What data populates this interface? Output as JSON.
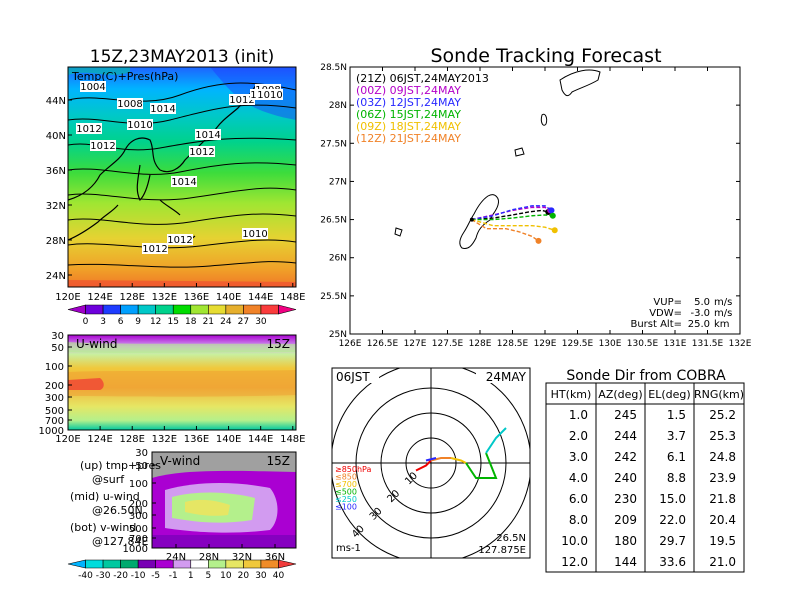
{
  "left_top": {
    "title": "15Z,23MAY2013 (init)",
    "label": "Temp(C)+Pres(hPa)",
    "lat_labels": [
      "44N",
      "40N",
      "36N",
      "32N",
      "28N",
      "24N"
    ],
    "lon_labels": [
      "120E",
      "124E",
      "128E",
      "132E",
      "136E",
      "140E",
      "144E",
      "148E"
    ],
    "pressure_labels": [
      {
        "text": "1004"
      },
      {
        "text": "1008"
      },
      {
        "text": "1014"
      },
      {
        "text": "1012"
      },
      {
        "text": "1010"
      },
      {
        "text": "1012"
      },
      {
        "text": "1008"
      },
      {
        "text": "1012"
      },
      {
        "text": "1010"
      },
      {
        "text": "1014"
      },
      {
        "text": "1012"
      },
      {
        "text": "1014"
      },
      {
        "text": "1012"
      },
      {
        "text": "1012"
      },
      {
        "text": "1010"
      },
      {
        "text": "1010"
      }
    ],
    "colorbar_ticks": [
      "0",
      "3",
      "6",
      "9",
      "12",
      "15",
      "18",
      "21",
      "24",
      "27",
      "30"
    ],
    "colorbar_colors": [
      "#a000c8",
      "#6e00dc",
      "#1e3cff",
      "#00a0ff",
      "#00c8c8",
      "#00d28c",
      "#00dc00",
      "#a0e632",
      "#e6dc32",
      "#e6af2d",
      "#f08228",
      "#fa3c3c",
      "#f00082"
    ]
  },
  "left_mid": {
    "title": "U-wind",
    "time": "15Z",
    "p_labels": [
      "30",
      "50",
      "100",
      "200",
      "300",
      "500",
      "700",
      "1000"
    ],
    "lon_labels": [
      "120E",
      "124E",
      "128E",
      "132E",
      "136E",
      "140E",
      "144E",
      "148E"
    ]
  },
  "left_bot": {
    "title": "V-wind",
    "time": "15Z",
    "p_labels": [
      "30",
      "50",
      "100",
      "200",
      "300",
      "500",
      "700",
      "1000"
    ],
    "lat_labels": [
      "24N",
      "28N",
      "32N",
      "36N"
    ],
    "colorbar_ticks": [
      "-40",
      "-30",
      "-20",
      "-10",
      "-5",
      "-1",
      "1",
      "5",
      "10",
      "20",
      "30",
      "40"
    ],
    "colorbar_colors": [
      "#00b4ff",
      "#00dcdc",
      "#00c8a0",
      "#00aa6e",
      "#7800b4",
      "#aa00d2",
      "#d29bf0",
      "#ffffff",
      "#b4f08c",
      "#e6e664",
      "#f0c83c",
      "#f08c28",
      "#f03c3c"
    ]
  },
  "legend_notes": [
    {
      "a": "(up) tmp+pres",
      "b": "@surf"
    },
    {
      "a": "(mid) u-wind",
      "b": "@26.50N"
    },
    {
      "a": "(bot) v-wind",
      "b": "@127.84E"
    }
  ],
  "tracking": {
    "title": "Sonde Tracking Forecast",
    "lat_ticks": [
      "28.5N",
      "28N",
      "27.5N",
      "27N",
      "26.5N",
      "26N",
      "25.5N",
      "25N"
    ],
    "lon_ticks": [
      "126E",
      "126.5E",
      "127E",
      "127.5E",
      "128E",
      "128.5E",
      "129E",
      "129.5E",
      "130E",
      "130.5E",
      "131E",
      "131.5E",
      "132E"
    ],
    "launches": [
      {
        "label": "(21Z)  06JST,24MAY2013",
        "color": "#000000"
      },
      {
        "label": "(00Z)  09JST,24MAY",
        "color": "#b400c8"
      },
      {
        "label": "(03Z)  12JST,24MAY",
        "color": "#2828ff"
      },
      {
        "label": "(06Z)  15JST,24MAY",
        "color": "#00b400"
      },
      {
        "label": "(09Z)  18JST,24MAY",
        "color": "#f0c000"
      },
      {
        "label": "(12Z)  21JST,24MAY",
        "color": "#f08228"
      }
    ],
    "params": [
      {
        "label": "VUP=",
        "value": "5.0",
        "unit": "m/s"
      },
      {
        "label": "VDW=",
        "value": "-3.0",
        "unit": "m/s"
      },
      {
        "label": "Burst Alt=",
        "value": "25.0",
        "unit": "km"
      }
    ]
  },
  "hodograph": {
    "time_label": "06JST",
    "date_label": "24MAY",
    "ring_labels": [
      "10",
      "20",
      "30",
      "40"
    ],
    "unit": "ms-1",
    "lat": "26.5N",
    "lon": "127.875E",
    "legend": [
      {
        "text": "≥850hPa",
        "color": "#f00000"
      },
      {
        "text": "≤850",
        "color": "#f08228"
      },
      {
        "text": "≤700",
        "color": "#f0c000"
      },
      {
        "text": "≤500",
        "color": "#00b400"
      },
      {
        "text": "≤250",
        "color": "#00c8c8"
      },
      {
        "text": "≤100",
        "color": "#2828ff"
      }
    ]
  },
  "sonde_table": {
    "title": "Sonde Dir from COBRA",
    "headers": [
      "HT(km)",
      "AZ(deg)",
      "EL(deg)",
      "RNG(km)"
    ],
    "rows": [
      [
        "1.0",
        "245",
        "1.5",
        "25.2"
      ],
      [
        "2.0",
        "244",
        "3.7",
        "25.3"
      ],
      [
        "3.0",
        "242",
        "6.1",
        "24.8"
      ],
      [
        "4.0",
        "240",
        "8.8",
        "23.9"
      ],
      [
        "6.0",
        "230",
        "15.0",
        "21.8"
      ],
      [
        "8.0",
        "209",
        "22.0",
        "20.4"
      ],
      [
        "10.0",
        "180",
        "29.7",
        "19.5"
      ],
      [
        "12.0",
        "144",
        "33.6",
        "21.0"
      ]
    ]
  },
  "chart_data": [
    {
      "type": "line",
      "title": "Sonde Tracking Forecast",
      "xlim": [
        126,
        132
      ],
      "ylim": [
        25,
        28.5
      ],
      "launch_point": [
        127.875,
        26.5
      ],
      "series": [
        {
          "name": "(21Z)  06JST,24MAY2013",
          "x": [
            127.87,
            128.2,
            128.5,
            128.75,
            128.95,
            129.05
          ],
          "y": [
            26.5,
            26.52,
            26.56,
            26.6,
            26.62,
            26.6
          ]
        },
        {
          "name": "(00Z)  09JST,24MAY",
          "x": [
            127.87,
            128.2,
            128.5,
            128.8,
            129.0,
            129.08
          ],
          "y": [
            26.5,
            26.56,
            26.62,
            26.66,
            26.66,
            26.62
          ]
        },
        {
          "name": "(03Z)  12JST,24MAY",
          "x": [
            127.87,
            128.2,
            128.5,
            128.8,
            129.0,
            129.1
          ],
          "y": [
            26.5,
            26.55,
            26.63,
            26.68,
            26.68,
            26.62
          ]
        },
        {
          "name": "(06Z)  15JST,24MAY",
          "x": [
            127.87,
            128.2,
            128.5,
            128.8,
            129.0,
            129.12
          ],
          "y": [
            26.5,
            26.5,
            26.52,
            26.55,
            26.56,
            26.55
          ]
        },
        {
          "name": "(09Z)  18JST,24MAY",
          "x": [
            127.87,
            128.2,
            128.5,
            128.8,
            129.0,
            129.15
          ],
          "y": [
            26.5,
            26.42,
            26.42,
            26.42,
            26.4,
            26.36
          ]
        },
        {
          "name": "(12Z)  21JST,24MAY",
          "x": [
            127.87,
            128.1,
            128.4,
            128.6,
            128.8,
            128.9
          ],
          "y": [
            26.5,
            26.38,
            26.38,
            26.34,
            26.28,
            26.22
          ]
        }
      ]
    },
    {
      "type": "line",
      "title": "hodograph",
      "xlim": [
        -40,
        40
      ],
      "ylim": [
        -40,
        40
      ],
      "series": [
        {
          "name": "≥850hPa",
          "u": [
            -6,
            -2,
            0
          ],
          "v": [
            -3,
            -1,
            1
          ]
        },
        {
          "name": "≤850",
          "u": [
            0,
            4,
            8
          ],
          "v": [
            1,
            2,
            2
          ]
        },
        {
          "name": "≤700",
          "u": [
            8,
            12,
            14
          ],
          "v": [
            2,
            1,
            0
          ]
        },
        {
          "name": "≤500",
          "u": [
            14,
            18,
            26,
            22
          ],
          "v": [
            0,
            -6,
            -6,
            4
          ]
        },
        {
          "name": "≤250",
          "u": [
            22,
            26,
            30
          ],
          "v": [
            4,
            10,
            14
          ]
        },
        {
          "name": "≤100",
          "u": [
            -2,
            2
          ],
          "v": [
            1,
            2
          ]
        }
      ]
    },
    {
      "type": "table",
      "title": "Sonde Dir from COBRA",
      "columns": [
        "HT(km)",
        "AZ(deg)",
        "EL(deg)",
        "RNG(km)"
      ],
      "rows": [
        [
          1.0,
          245,
          1.5,
          25.2
        ],
        [
          2.0,
          244,
          3.7,
          25.3
        ],
        [
          3.0,
          242,
          6.1,
          24.8
        ],
        [
          4.0,
          240,
          8.8,
          23.9
        ],
        [
          6.0,
          230,
          15.0,
          21.8
        ],
        [
          8.0,
          209,
          22.0,
          20.4
        ],
        [
          10.0,
          180,
          29.7,
          19.5
        ],
        [
          12.0,
          144,
          33.6,
          21.0
        ]
      ]
    }
  ]
}
